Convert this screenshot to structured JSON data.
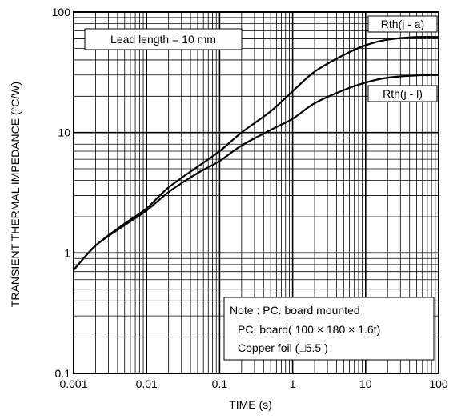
{
  "chart_data": {
    "type": "line",
    "xlabel": "TIME (s)",
    "ylabel": "TRANSIENT THERMAL IMPEDANCE (°C/W)",
    "xscale": "log",
    "yscale": "log",
    "xlim": [
      0.001,
      100
    ],
    "ylim": [
      0.1,
      100
    ],
    "grid": true,
    "x_ticks": [
      {
        "value": 0.001,
        "label": "0.001"
      },
      {
        "value": 0.01,
        "label": "0.01"
      },
      {
        "value": 0.1,
        "label": "0.1"
      },
      {
        "value": 1,
        "label": "1"
      },
      {
        "value": 10,
        "label": "10"
      },
      {
        "value": 100,
        "label": "100"
      }
    ],
    "y_ticks": [
      {
        "value": 0.1,
        "label": "0.1"
      },
      {
        "value": 1,
        "label": "1"
      },
      {
        "value": 10,
        "label": "10"
      },
      {
        "value": 100,
        "label": "100"
      }
    ],
    "series": [
      {
        "name": "Rth(j - a)",
        "points": [
          [
            0.001,
            0.72
          ],
          [
            0.002,
            1.15
          ],
          [
            0.005,
            1.75
          ],
          [
            0.01,
            2.35
          ],
          [
            0.02,
            3.5
          ],
          [
            0.05,
            5.2
          ],
          [
            0.1,
            7.0
          ],
          [
            0.2,
            10.0
          ],
          [
            0.5,
            15.0
          ],
          [
            1,
            22.0
          ],
          [
            2,
            32.0
          ],
          [
            5,
            44.0
          ],
          [
            10,
            53.0
          ],
          [
            20,
            59.0
          ],
          [
            50,
            62.0
          ],
          [
            100,
            62.0
          ]
        ]
      },
      {
        "name": "Rth(j - l)",
        "points": [
          [
            0.001,
            0.72
          ],
          [
            0.002,
            1.15
          ],
          [
            0.005,
            1.7
          ],
          [
            0.01,
            2.25
          ],
          [
            0.02,
            3.2
          ],
          [
            0.05,
            4.6
          ],
          [
            0.1,
            5.8
          ],
          [
            0.2,
            7.8
          ],
          [
            0.5,
            10.5
          ],
          [
            1,
            13.0
          ],
          [
            2,
            17.5
          ],
          [
            5,
            22.5
          ],
          [
            10,
            26.0
          ],
          [
            20,
            28.5
          ],
          [
            50,
            29.8
          ],
          [
            100,
            30.0
          ]
        ]
      }
    ],
    "annotations": {
      "lead_length": "Lead length = 10 mm",
      "note_lines": [
        "Note : PC. board mounted",
        "PC. board( 100 × 180 × 1.6t)",
        "Copper foil (□5.5 )"
      ]
    }
  }
}
